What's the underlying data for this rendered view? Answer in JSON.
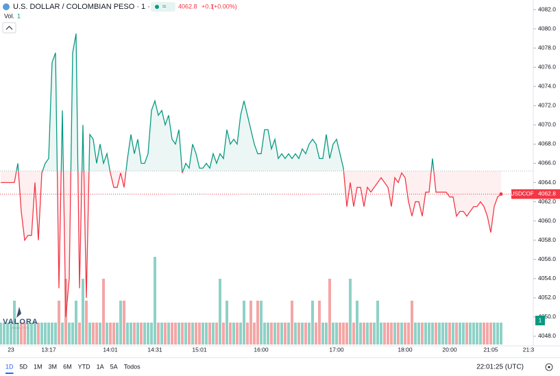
{
  "chart_data": {
    "type": "baseline",
    "header": {
      "title": "U.S. DOLLAR / COLOMBIAN PESO · 1 · ICE",
      "badge": "≈",
      "change": "+0.1",
      "change_pct": "(+0.00%)"
    },
    "baseline": 4065.2,
    "categories": [
      null,
      null,
      null,
      "23",
      null,
      null,
      null,
      null,
      null,
      null,
      null,
      null,
      null,
      null,
      "13:17",
      null,
      null,
      null,
      null,
      null,
      null,
      null,
      null,
      null,
      null,
      null,
      null,
      null,
      null,
      null,
      null,
      null,
      "14:01",
      null,
      null,
      null,
      null,
      null,
      null,
      null,
      null,
      null,
      null,
      null,
      null,
      "14:31",
      null,
      null,
      null,
      null,
      null,
      null,
      null,
      null,
      null,
      null,
      null,
      null,
      "15:01",
      null,
      null,
      null,
      null,
      null,
      null,
      null,
      null,
      null,
      null,
      null,
      null,
      null,
      null,
      null,
      null,
      null,
      "16:00",
      null,
      null,
      null,
      null,
      null,
      null,
      null,
      null,
      null,
      null,
      null,
      null,
      null,
      null,
      null,
      null,
      null,
      null,
      null,
      null,
      null,
      "17:00",
      null,
      null,
      null,
      null,
      null,
      null,
      null,
      null,
      null,
      null,
      null,
      null,
      null,
      null,
      null,
      null,
      null,
      null,
      null,
      "18:00",
      null,
      null,
      null,
      null,
      null,
      null,
      null,
      null,
      null,
      null,
      null,
      null,
      "20:00",
      null,
      null,
      null,
      null,
      null,
      null,
      null,
      null,
      null,
      null,
      null,
      "21:05",
      null,
      null,
      null,
      null,
      null,
      null,
      null,
      null,
      null,
      null,
      "21:3",
      null
    ],
    "series": [
      {
        "name": "USDCOP",
        "color_up": "#089981",
        "color_down": "#f23645",
        "values": [
          4064,
          4064,
          4064,
          4064,
          4064,
          4066,
          4061,
          4058,
          4058.5,
          4058.5,
          4064,
          4058,
          4065,
          4066,
          4066.5,
          4076.5,
          4077.5,
          4053,
          4071.5,
          4050,
          4054,
          4077.5,
          4079.5,
          4053,
          4070,
          4052,
          4069,
          4068.5,
          4066,
          4068,
          4066,
          4067,
          4065,
          4063.5,
          4063.5,
          4065,
          4063.5,
          4066.5,
          4069,
          4067,
          4068.5,
          4066,
          4066,
          4067,
          4071.5,
          4072.5,
          4071,
          4071.5,
          4070,
          4071,
          4068.5,
          4068,
          4069.5,
          4065,
          4066,
          4065.5,
          4068,
          4067,
          4065.5,
          4065.5,
          4066,
          4065.5,
          4067,
          4066,
          4067,
          4066.5,
          4069.5,
          4068,
          4068.5,
          4068,
          4071,
          4072.5,
          4071,
          4069.5,
          4068,
          4067,
          4067,
          4069.5,
          4069.5,
          4067.5,
          4068.5,
          4066.5,
          4067,
          4066.5,
          4067,
          4066.5,
          4067,
          4066.5,
          4067.5,
          4067,
          4068,
          4068.5,
          4068,
          4066.5,
          4066.5,
          4069,
          4066.5,
          4068,
          4068.5,
          4067,
          4065.5,
          4061.5,
          4064,
          4061.5,
          4063.5,
          4063.5,
          4061.5,
          4063.5,
          4063,
          4063.5,
          4064,
          4064.5,
          4064,
          4063.5,
          4061.5,
          4064.5,
          4064,
          4065,
          4064.5,
          4062,
          4060.5,
          4062,
          4062,
          4060.5,
          4063,
          4063,
          4066.5,
          4063,
          4063,
          4063,
          4063,
          4062.5,
          4062.5,
          4060.5,
          4061,
          4061,
          4060.5,
          4061,
          4061.5,
          4061.5,
          4062,
          4061.5,
          4060.5,
          4058.8,
          4061.5,
          4062.5,
          4062.8,
          null,
          null,
          null,
          null,
          null,
          null,
          null,
          null,
          null
        ]
      }
    ],
    "volume": {
      "name": "Vol.",
      "color_up": "#8fd1c6",
      "color_down": "#f4a6a6",
      "values": [
        1,
        1,
        1,
        1,
        2,
        1,
        1,
        1,
        1,
        1,
        1,
        1,
        1,
        1,
        1,
        1,
        1,
        2,
        1,
        3,
        1,
        1,
        2,
        1,
        3,
        2,
        1,
        1,
        1,
        1,
        3,
        1,
        1,
        1,
        1,
        2,
        2,
        1,
        1,
        1,
        1,
        1,
        1,
        1,
        1,
        4,
        1,
        1,
        1,
        1,
        1,
        1,
        1,
        1,
        1,
        1,
        1,
        1,
        1,
        1,
        1,
        1,
        1,
        1,
        3,
        1,
        2,
        1,
        1,
        1,
        1,
        2,
        1,
        2,
        1,
        2,
        2,
        1,
        1,
        1,
        1,
        1,
        1,
        1,
        1,
        2,
        1,
        1,
        1,
        1,
        1,
        2,
        1,
        2,
        1,
        1,
        3,
        1,
        1,
        1,
        1,
        1,
        3,
        1,
        2,
        1,
        1,
        1,
        1,
        1,
        2,
        1,
        1,
        1,
        1,
        1,
        1,
        1,
        1,
        1,
        2,
        1,
        1,
        1,
        1,
        1,
        1,
        1,
        1,
        1,
        1,
        1,
        1,
        1,
        1,
        1,
        1,
        1,
        1,
        1,
        1,
        1,
        1,
        1,
        1,
        1,
        1,
        null,
        null,
        null,
        null,
        null,
        null,
        null,
        null,
        null
      ]
    },
    "ylim": [
      4047,
      4083
    ],
    "yticks": [
      {
        "value": 4048,
        "label": "4048.0"
      },
      {
        "value": 4050,
        "label": "4050.0"
      },
      {
        "value": 4052,
        "label": "4052.0"
      },
      {
        "value": 4054,
        "label": "4054.0"
      },
      {
        "value": 4056,
        "label": "4056.0"
      },
      {
        "value": 4058,
        "label": "4058.0"
      },
      {
        "value": 4060,
        "label": "4060.0"
      },
      {
        "value": 4062,
        "label": "4062.0"
      },
      {
        "value": 4064,
        "label": "4064.0"
      },
      {
        "value": 4066,
        "label": "4066.0"
      },
      {
        "value": 4068,
        "label": "4068.0"
      },
      {
        "value": 4070,
        "label": "4070.0"
      },
      {
        "value": 4072,
        "label": "4072.0"
      },
      {
        "value": 4074,
        "label": "4074.0"
      },
      {
        "value": 4076,
        "label": "4076.0"
      },
      {
        "value": 4078,
        "label": "4078.0"
      },
      {
        "value": 4080,
        "label": "4080.0"
      },
      {
        "value": 4082,
        "label": "4082.0"
      }
    ],
    "grid": false,
    "watermark": {
      "name": "VALORA",
      "tagline": "ANALITIK"
    },
    "ranges": [
      "1D",
      "5D",
      "1M",
      "3M",
      "6M",
      "YTD",
      "1A",
      "5A",
      "Todos"
    ],
    "clock": "22:01:25 (UTC)"
  }
}
